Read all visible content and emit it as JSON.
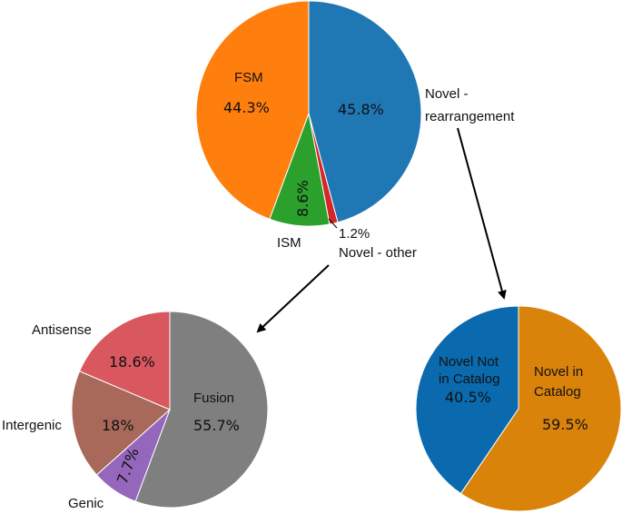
{
  "chart_data": [
    {
      "type": "pie",
      "id": "main",
      "slices": [
        {
          "name": "Novel - rearrangement",
          "value": 45.8,
          "value_label": "45.8%",
          "color": "#1f77b4"
        },
        {
          "name": "Novel - other",
          "value": 1.2,
          "value_label": "1.2%",
          "color": "#d62728"
        },
        {
          "name": "ISM",
          "value": 8.6,
          "value_label": "8.6%",
          "color": "#2ca02c"
        },
        {
          "name": "FSM",
          "value": 44.3,
          "value_label": "44.3%",
          "color": "#ff7f0e"
        }
      ]
    },
    {
      "type": "pie",
      "id": "novel-other",
      "slices": [
        {
          "name": "Fusion",
          "value": 55.7,
          "value_label": "55.7%",
          "color": "#7f7f7f"
        },
        {
          "name": "Genic",
          "value": 7.7,
          "value_label": "7.7%",
          "color": "#9467bd"
        },
        {
          "name": "Intergenic",
          "value": 18,
          "value_label": "18%",
          "color": "#a8685a"
        },
        {
          "name": "Antisense",
          "value": 18.6,
          "value_label": "18.6%",
          "color": "#d9575f"
        }
      ]
    },
    {
      "type": "pie",
      "id": "novel-rearrangement",
      "slices": [
        {
          "name": "Novel in Catalog",
          "value": 59.5,
          "value_label": "59.5%",
          "color": "#d9830b"
        },
        {
          "name": "Novel Not in Catalog",
          "value": 40.5,
          "value_label": "40.5%",
          "color": "#0a6aad"
        }
      ]
    }
  ],
  "labels": {
    "main_novel_rearr_line1": "Novel -",
    "main_novel_rearr_line2": "rearrangement",
    "main_novel_other": "Novel - other",
    "main_fsm": "FSM",
    "main_ism": "ISM",
    "sub_fusion": "Fusion",
    "sub_genic": "Genic",
    "sub_intergenic": "Intergenic",
    "sub_antisense": "Antisense",
    "sub_nic_line1": "Novel in",
    "sub_nic_line2": "Catalog",
    "sub_nnc_line1": "Novel Not",
    "sub_nnc_line2": "in Catalog"
  }
}
